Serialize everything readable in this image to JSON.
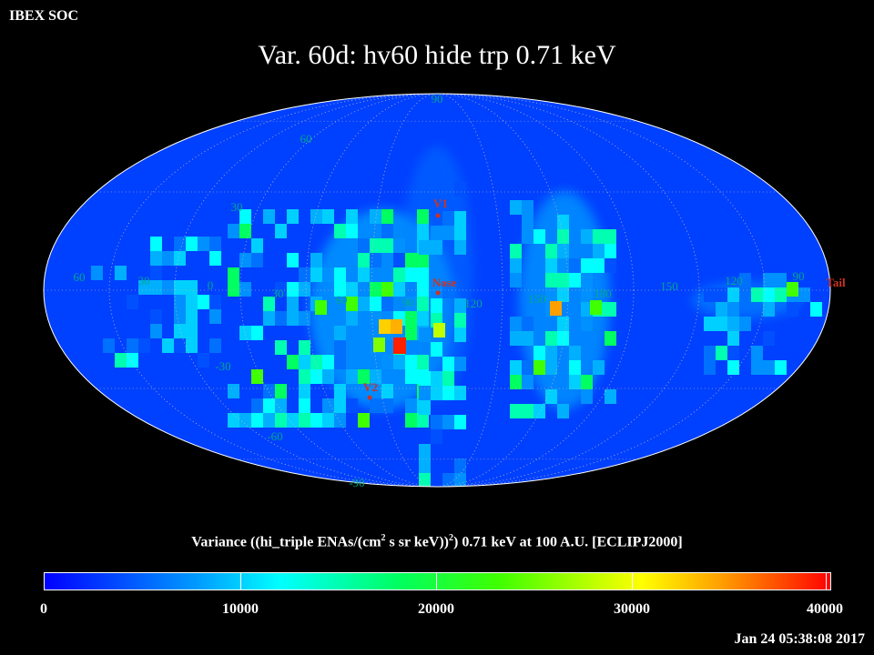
{
  "header": {
    "org": "IBEX SOC",
    "title": "Var. 60d: hv60 hide trp 0.71 keV"
  },
  "map": {
    "projection": "Mollweide",
    "frame": "ECLIPJ2000",
    "latitude_labels": [
      "90",
      "60",
      "30",
      "-30",
      "-60",
      "-90"
    ],
    "longitude_labels_left_to_right": [
      "60",
      "30",
      "0",
      "30",
      "60",
      "90",
      "120",
      "150",
      "180",
      "150",
      "120",
      "90"
    ],
    "markers": [
      {
        "label": "V1"
      },
      {
        "label": "Nose"
      },
      {
        "label": "V2"
      },
      {
        "label": "Tail"
      }
    ],
    "colors": {
      "background_low": "#0033ff",
      "grid": "#bbbbbb",
      "marker": "#cc3322",
      "label": "#00aa88"
    }
  },
  "colorbar": {
    "title_prefix": "Variance ((hi_triple ENAs/(cm",
    "title_sup1": "2",
    "title_middle": " s sr keV))",
    "title_sup2": "2",
    "title_suffix": ") 0.71 keV at 100 A.U. [ECLIPJ2000]",
    "min": 0,
    "max": 40000,
    "tick_labels": [
      "0",
      "10000",
      "20000",
      "30000",
      "40000"
    ]
  },
  "footer": {
    "timestamp": "Jan 24 05:38:08 2017"
  }
}
